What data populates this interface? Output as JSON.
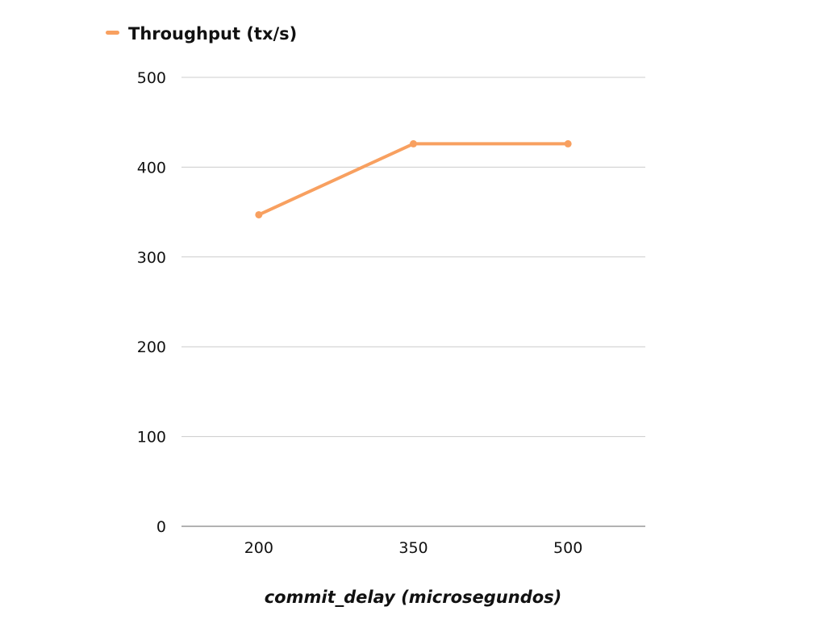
{
  "colors": {
    "series": "#F8A060",
    "grid": "#CCCCCC",
    "axis": "#999999",
    "text": "#111111"
  },
  "chart_data": {
    "type": "line",
    "title": "",
    "categories": [
      "200",
      "350",
      "500"
    ],
    "series": [
      {
        "name": "Throughput (tx/s)",
        "values": [
          347,
          426,
          426
        ]
      }
    ],
    "xlabel": "commit_delay (microsegundos)",
    "ylabel": "",
    "ylim": [
      0,
      500
    ],
    "yticks": [
      "0",
      "100",
      "200",
      "300",
      "400",
      "500"
    ],
    "grid": true,
    "legend": "top-left"
  }
}
